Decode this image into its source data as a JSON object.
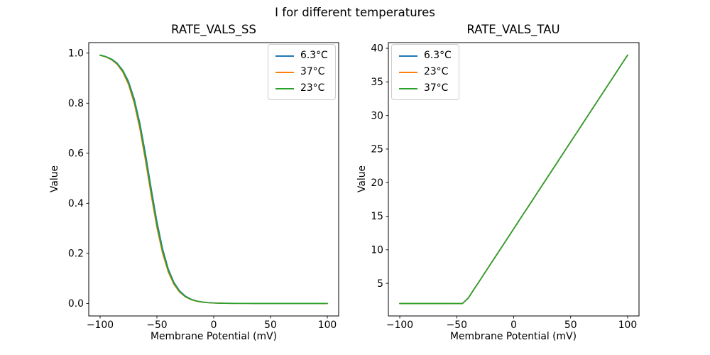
{
  "figure": {
    "suptitle": "I for different temperatures",
    "background": "#ffffff"
  },
  "colors": {
    "series_blue": "#1f77b4",
    "series_orange": "#ff7f0e",
    "series_green": "#2ca02c",
    "axis": "#000000",
    "legend_border": "#cccccc"
  },
  "chart_data": [
    {
      "type": "line",
      "title": "RATE_VALS_SS",
      "xlabel": "Membrane Potential (mV)",
      "ylabel": "Value",
      "xlim": [
        -110,
        110
      ],
      "ylim": [
        -0.05,
        1.042
      ],
      "grid": false,
      "legend_position": "upper-right",
      "xticks": {
        "values": [
          -100,
          -50,
          0,
          50,
          100
        ],
        "labels": [
          "−100",
          "−50",
          "0",
          "50",
          "100"
        ]
      },
      "yticks": {
        "values": [
          0.0,
          0.2,
          0.4,
          0.6,
          0.8,
          1.0
        ],
        "labels": [
          "0.0",
          "0.2",
          "0.4",
          "0.6",
          "0.8",
          "1.0"
        ]
      },
      "x": [
        -100,
        -95,
        -90,
        -85,
        -80,
        -75,
        -70,
        -65,
        -60,
        -55,
        -50,
        -45,
        -40,
        -35,
        -30,
        -25,
        -20,
        -15,
        -10,
        -5,
        0,
        5,
        10,
        15,
        20,
        25,
        30,
        35,
        40,
        45,
        50,
        55,
        60,
        65,
        70,
        75,
        80,
        85,
        90,
        95,
        100
      ],
      "series": [
        {
          "name": "6.3°C",
          "color": "#1f77b4",
          "values": [
            0.9921,
            0.9863,
            0.9764,
            0.9596,
            0.9315,
            0.8865,
            0.8176,
            0.7199,
            0.596,
            0.4584,
            0.3269,
            0.2179,
            0.1378,
            0.084,
            0.05,
            0.0293,
            0.017,
            0.0098,
            0.0057,
            0.0033,
            0.0019,
            0.0011,
            0.0006,
            0.0004,
            0.0002,
            0.0001,
            0.0001,
            0,
            0,
            0,
            0,
            0,
            0,
            0,
            0,
            0,
            0,
            0,
            0,
            0,
            0
          ]
        },
        {
          "name": "37°C",
          "color": "#ff7f0e",
          "values": [
            0.9912,
            0.9847,
            0.9737,
            0.9551,
            0.9241,
            0.8747,
            0.8004,
            0.6971,
            0.569,
            0.431,
            0.303,
            0.2,
            0.1252,
            0.0759,
            0.045,
            0.0263,
            0.0153,
            0.0088,
            0.0051,
            0.0029,
            0.0017,
            0.001,
            0.0006,
            0.0003,
            0.0002,
            0.0001,
            0.0001,
            0,
            0,
            0,
            0,
            0,
            0,
            0,
            0,
            0,
            0,
            0,
            0,
            0,
            0
          ]
        },
        {
          "name": "23°C",
          "color": "#2ca02c",
          "values": [
            0.9917,
            0.9856,
            0.975,
            0.9574,
            0.9279,
            0.8808,
            0.8091,
            0.7087,
            0.5826,
            0.4447,
            0.3148,
            0.2086,
            0.1314,
            0.0798,
            0.0474,
            0.0278,
            0.0161,
            0.0093,
            0.0054,
            0.0031,
            0.0018,
            0.001,
            0.0006,
            0.0003,
            0.0002,
            0.0001,
            0.0001,
            0,
            0,
            0,
            0,
            0,
            0,
            0,
            0,
            0,
            0,
            0,
            0,
            0,
            0
          ]
        }
      ]
    },
    {
      "type": "line",
      "title": "RATE_VALS_TAU",
      "xlabel": "Membrane Potential (mV)",
      "ylabel": "Value",
      "xlim": [
        -110,
        110
      ],
      "ylim": [
        0.15,
        40.85
      ],
      "grid": false,
      "legend_position": "upper-left",
      "xticks": {
        "values": [
          -100,
          -50,
          0,
          50,
          100
        ],
        "labels": [
          "−100",
          "−50",
          "0",
          "50",
          "100"
        ]
      },
      "yticks": {
        "values": [
          5,
          10,
          15,
          20,
          25,
          30,
          35,
          40
        ],
        "labels": [
          "5",
          "10",
          "15",
          "20",
          "25",
          "30",
          "35",
          "40"
        ]
      },
      "x": [
        -100,
        -95,
        -90,
        -85,
        -80,
        -75,
        -70,
        -65,
        -60,
        -55,
        -50,
        -45,
        -40,
        -35,
        -30,
        -25,
        -20,
        -15,
        -10,
        -5,
        0,
        5,
        10,
        15,
        20,
        25,
        30,
        35,
        40,
        45,
        50,
        55,
        60,
        65,
        70,
        75,
        80,
        85,
        90,
        95,
        100
      ],
      "series": [
        {
          "name": "6.3°C",
          "color": "#1f77b4",
          "values": [
            2,
            2,
            2,
            2,
            2,
            2,
            2,
            2,
            2,
            2,
            2,
            2,
            2.78,
            4.07,
            5.36,
            6.66,
            7.95,
            9.24,
            10.54,
            11.83,
            13.12,
            14.42,
            15.71,
            17.0,
            18.3,
            19.59,
            20.88,
            22.18,
            23.47,
            24.76,
            26.06,
            27.35,
            28.64,
            29.94,
            31.23,
            32.52,
            33.82,
            35.11,
            36.4,
            37.7,
            38.99
          ]
        },
        {
          "name": "23°C",
          "color": "#ff7f0e",
          "values": [
            2,
            2,
            2,
            2,
            2,
            2,
            2,
            2,
            2,
            2,
            2,
            2,
            2.78,
            4.07,
            5.36,
            6.66,
            7.95,
            9.24,
            10.54,
            11.83,
            13.12,
            14.42,
            15.71,
            17.0,
            18.3,
            19.59,
            20.88,
            22.18,
            23.47,
            24.76,
            26.06,
            27.35,
            28.64,
            29.94,
            31.23,
            32.52,
            33.82,
            35.11,
            36.4,
            37.7,
            38.99
          ]
        },
        {
          "name": "37°C",
          "color": "#2ca02c",
          "values": [
            2,
            2,
            2,
            2,
            2,
            2,
            2,
            2,
            2,
            2,
            2,
            2,
            2.78,
            4.07,
            5.36,
            6.66,
            7.95,
            9.24,
            10.54,
            11.83,
            13.12,
            14.42,
            15.71,
            17.0,
            18.3,
            19.59,
            20.88,
            22.18,
            23.47,
            24.76,
            26.06,
            27.35,
            28.64,
            29.94,
            31.23,
            32.52,
            33.82,
            35.11,
            36.4,
            37.7,
            38.99
          ]
        }
      ]
    }
  ]
}
